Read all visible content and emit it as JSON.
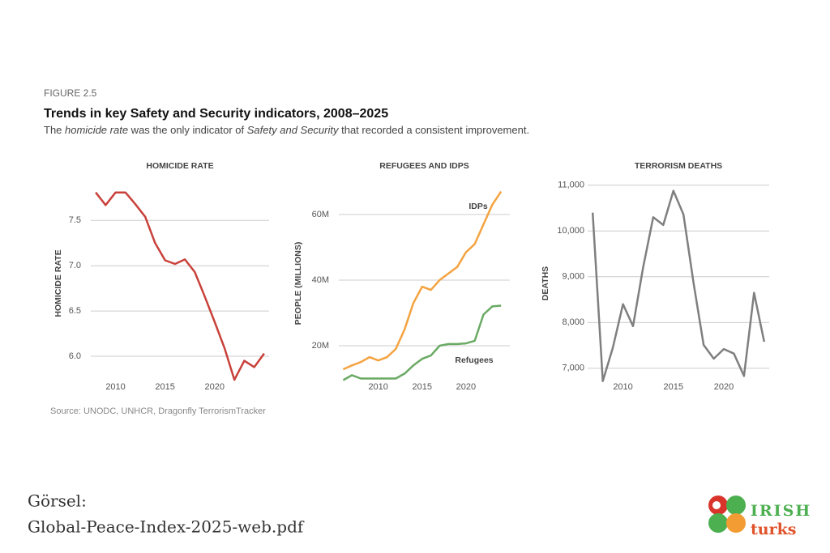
{
  "figure_label": "FIGURE 2.5",
  "title": "Trends in key Safety and Security indicators, 2008–2025",
  "subtitle": [
    "The ",
    "homicide rate",
    " was the only indicator of ",
    "Safety and Security",
    " that recorded a consistent improvement."
  ],
  "source": "Source: UNODC, UNHCR, Dragonfly TerrorismTracker",
  "caption": [
    "Görsel:",
    "Global-Peace-Index-2025-web.pdf"
  ],
  "logo": [
    "IRISH",
    "turks"
  ],
  "chart_data": [
    {
      "type": "line",
      "title": "HOMICIDE RATE",
      "ylabel": "HOMICIDE RATE",
      "color": "#c8413a",
      "x": [
        2008,
        2009,
        2010,
        2011,
        2012,
        2013,
        2014,
        2015,
        2016,
        2017,
        2018,
        2019,
        2020,
        2021,
        2022,
        2023,
        2024,
        2025
      ],
      "values": [
        7.81,
        7.67,
        7.81,
        7.81,
        7.68,
        7.54,
        7.25,
        7.06,
        7.02,
        7.07,
        6.93,
        6.66,
        6.38,
        6.09,
        5.74,
        5.95,
        5.88,
        6.03
      ],
      "xlim": [
        2007.5,
        2025.5
      ],
      "xticks": [
        2010,
        2015,
        2020
      ],
      "ylim": [
        5.66,
        7.95
      ],
      "yticks": [
        {
          "value": 6,
          "label": "6.0"
        },
        6.5,
        {
          "value": 7,
          "label": "7.0"
        },
        7.5
      ],
      "grid": true
    },
    {
      "type": "line",
      "title": "REFUGEES AND IDPS",
      "ylabel": "PEOPLE (MILLIONS)",
      "x": [
        2006,
        2007,
        2008,
        2009,
        2010,
        2011,
        2012,
        2013,
        2014,
        2015,
        2016,
        2017,
        2018,
        2019,
        2020,
        2021,
        2022,
        2023,
        2024
      ],
      "series": [
        {
          "name": "IDPs",
          "color": "#f4a340",
          "values": [
            12.8,
            14,
            15,
            16.5,
            15.5,
            16.5,
            19,
            25,
            33,
            38,
            37,
            40,
            42,
            44,
            48.5,
            51,
            57,
            63,
            67
          ]
        },
        {
          "name": "Refugees",
          "color": "#6aaa64",
          "values": [
            9.5,
            11,
            10,
            10,
            10,
            10,
            10,
            11.5,
            14,
            16,
            17,
            20,
            20.5,
            20.5,
            20.7,
            21.5,
            29.5,
            32,
            32.2
          ]
        }
      ],
      "xlim": [
        2005.5,
        2025
      ],
      "xticks": [
        2010,
        2015,
        2020
      ],
      "ylim": [
        7.4,
        70.6
      ],
      "yticks": [
        {
          "value": 20,
          "label": "20M"
        },
        {
          "value": 40,
          "label": "40M"
        },
        {
          "value": 60,
          "label": "60M"
        }
      ],
      "grid": true
    },
    {
      "type": "line",
      "title": "TERRORISM DEATHS",
      "ylabel": "DEATHS",
      "color": "#7f7f7f",
      "x": [
        2007,
        2008,
        2009,
        2010,
        2011,
        2012,
        2013,
        2014,
        2015,
        2016,
        2017,
        2018,
        2019,
        2020,
        2021,
        2022,
        2023,
        2024
      ],
      "values": [
        10400,
        6720,
        7450,
        8400,
        7920,
        9200,
        10300,
        10130,
        10880,
        10360,
        8860,
        7510,
        7210,
        7420,
        7320,
        6830,
        8650,
        7580
      ],
      "xlim": [
        2006.5,
        2024.5
      ],
      "xticks": [
        2010,
        2015,
        2020
      ],
      "ylim": [
        6590,
        11120
      ],
      "yticks": [
        {
          "value": 7000,
          "label": "7,000"
        },
        {
          "value": 8000,
          "label": "8,000"
        },
        {
          "value": 9000,
          "label": "9,000"
        },
        {
          "value": 10000,
          "label": "10,000"
        },
        {
          "value": 11000,
          "label": "11,000"
        }
      ],
      "grid": true
    }
  ]
}
